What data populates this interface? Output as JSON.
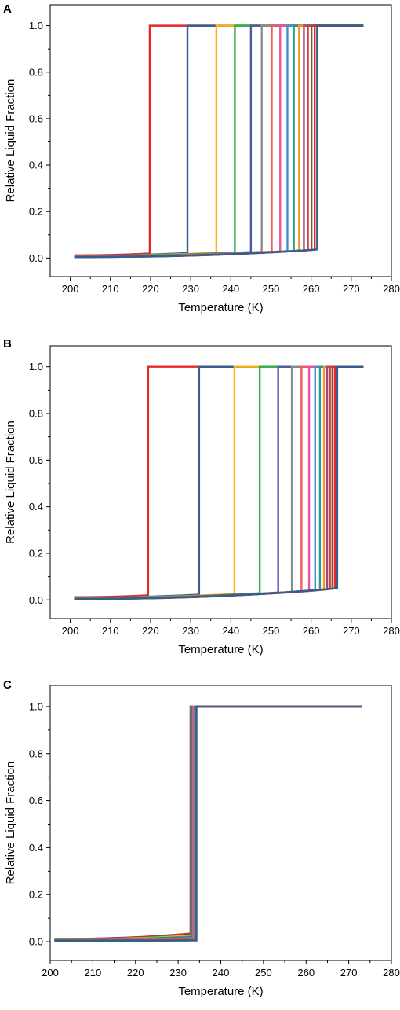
{
  "chart_data": [
    {
      "panel": "A",
      "type": "line",
      "xlabel": "Temperature (K)",
      "ylabel": "Relative Liquid Fraction",
      "xlim": [
        195,
        280
      ],
      "ylim": [
        -0.08,
        1.09
      ],
      "xticks": [
        200,
        210,
        220,
        230,
        240,
        250,
        260,
        270,
        280
      ],
      "yticks": [
        0.0,
        0.2,
        0.4,
        0.6,
        0.8,
        1.0
      ],
      "x_start": 201,
      "x_end": 273,
      "series": [
        {
          "color": "#e8262a",
          "x_jump": 219.8,
          "y_low_start": 0.012,
          "y_low_end": 0.02
        },
        {
          "color": "#315f8e",
          "x_jump": 229.2,
          "y_low_start": 0.01,
          "y_low_end": 0.022
        },
        {
          "color": "#f7b519",
          "x_jump": 236.4,
          "y_low_start": 0.009,
          "y_low_end": 0.024
        },
        {
          "color": "#2fae49",
          "x_jump": 241.0,
          "y_low_start": 0.008,
          "y_low_end": 0.025
        },
        {
          "color": "#4c5aa0",
          "x_jump": 245.0,
          "y_low_start": 0.008,
          "y_low_end": 0.026
        },
        {
          "color": "#8c8c8c",
          "x_jump": 247.7,
          "y_low_start": 0.007,
          "y_low_end": 0.027
        },
        {
          "color": "#f15a5a",
          "x_jump": 250.2,
          "y_low_start": 0.007,
          "y_low_end": 0.028
        },
        {
          "color": "#e8569f",
          "x_jump": 252.3,
          "y_low_start": 0.006,
          "y_low_end": 0.029
        },
        {
          "color": "#3f8fd0",
          "x_jump": 254.1,
          "y_low_start": 0.006,
          "y_low_end": 0.03
        },
        {
          "color": "#2a9a8a",
          "x_jump": 255.7,
          "y_low_start": 0.006,
          "y_low_end": 0.031
        },
        {
          "color": "#f59331",
          "x_jump": 257.0,
          "y_low_start": 0.005,
          "y_low_end": 0.032
        },
        {
          "color": "#a4476e",
          "x_jump": 258.2,
          "y_low_start": 0.005,
          "y_low_end": 0.033
        },
        {
          "color": "#d13f3f",
          "x_jump": 259.2,
          "y_low_start": 0.005,
          "y_low_end": 0.034
        },
        {
          "color": "#7a5c3a",
          "x_jump": 260.1,
          "y_low_start": 0.005,
          "y_low_end": 0.035
        },
        {
          "color": "#e8262a",
          "x_jump": 260.9,
          "y_low_start": 0.004,
          "y_low_end": 0.036
        },
        {
          "color": "#315f8e",
          "x_jump": 261.5,
          "y_low_start": 0.004,
          "y_low_end": 0.037
        }
      ]
    },
    {
      "panel": "B",
      "type": "line",
      "xlabel": "Temperature (K)",
      "ylabel": "Relative Liquid Fraction",
      "xlim": [
        195,
        280
      ],
      "ylim": [
        -0.08,
        1.09
      ],
      "xticks": [
        200,
        210,
        220,
        230,
        240,
        250,
        260,
        270,
        280
      ],
      "yticks": [
        0.0,
        0.2,
        0.4,
        0.6,
        0.8,
        1.0
      ],
      "x_start": 201,
      "x_end": 273,
      "series": [
        {
          "color": "#e8262a",
          "x_jump": 219.4,
          "y_low_start": 0.012,
          "y_low_end": 0.02
        },
        {
          "color": "#315f8e",
          "x_jump": 232.1,
          "y_low_start": 0.01,
          "y_low_end": 0.023
        },
        {
          "color": "#f7b519",
          "x_jump": 240.9,
          "y_low_start": 0.009,
          "y_low_end": 0.026
        },
        {
          "color": "#2fae49",
          "x_jump": 247.2,
          "y_low_start": 0.008,
          "y_low_end": 0.029
        },
        {
          "color": "#4c5aa0",
          "x_jump": 251.8,
          "y_low_start": 0.008,
          "y_low_end": 0.032
        },
        {
          "color": "#8c8c8c",
          "x_jump": 255.2,
          "y_low_start": 0.007,
          "y_low_end": 0.034
        },
        {
          "color": "#f15a5a",
          "x_jump": 257.6,
          "y_low_start": 0.007,
          "y_low_end": 0.036
        },
        {
          "color": "#e8569f",
          "x_jump": 259.5,
          "y_low_start": 0.006,
          "y_low_end": 0.038
        },
        {
          "color": "#3f8fd0",
          "x_jump": 261.0,
          "y_low_start": 0.006,
          "y_low_end": 0.04
        },
        {
          "color": "#2a9a8a",
          "x_jump": 262.2,
          "y_low_start": 0.006,
          "y_low_end": 0.042
        },
        {
          "color": "#f59331",
          "x_jump": 263.2,
          "y_low_start": 0.005,
          "y_low_end": 0.044
        },
        {
          "color": "#a4476e",
          "x_jump": 264.0,
          "y_low_start": 0.005,
          "y_low_end": 0.045
        },
        {
          "color": "#d13f3f",
          "x_jump": 264.7,
          "y_low_start": 0.005,
          "y_low_end": 0.047
        },
        {
          "color": "#7a5c3a",
          "x_jump": 265.3,
          "y_low_start": 0.005,
          "y_low_end": 0.048
        },
        {
          "color": "#e8262a",
          "x_jump": 265.9,
          "y_low_start": 0.004,
          "y_low_end": 0.049
        },
        {
          "color": "#315f8e",
          "x_jump": 266.5,
          "y_low_start": 0.004,
          "y_low_end": 0.05
        }
      ]
    },
    {
      "panel": "C",
      "type": "line",
      "xlabel": "Temperature (K)",
      "ylabel": "Relative Liquid Fraction",
      "xlim": [
        200,
        280
      ],
      "ylim": [
        -0.08,
        1.09
      ],
      "xticks": [
        200,
        210,
        220,
        230,
        240,
        250,
        260,
        270,
        280
      ],
      "yticks": [
        0.0,
        0.2,
        0.4,
        0.6,
        0.8,
        1.0
      ],
      "x_start": 201,
      "x_end": 273,
      "series": [
        {
          "color": "#e8262a",
          "x_jump": 232.9,
          "y_low_start": 0.012,
          "y_low_end": 0.035
        },
        {
          "color": "#315f8e",
          "x_jump": 233.0,
          "y_low_start": 0.011,
          "y_low_end": 0.03
        },
        {
          "color": "#f7b519",
          "x_jump": 233.1,
          "y_low_start": 0.01,
          "y_low_end": 0.026
        },
        {
          "color": "#2fae49",
          "x_jump": 233.25,
          "y_low_start": 0.009,
          "y_low_end": 0.022
        },
        {
          "color": "#4c5aa0",
          "x_jump": 233.4,
          "y_low_start": 0.008,
          "y_low_end": 0.019
        },
        {
          "color": "#8c8c8c",
          "x_jump": 233.55,
          "y_low_start": 0.007,
          "y_low_end": 0.016
        },
        {
          "color": "#f15a5a",
          "x_jump": 233.7,
          "y_low_start": 0.007,
          "y_low_end": 0.014
        },
        {
          "color": "#e8569f",
          "x_jump": 233.8,
          "y_low_start": 0.006,
          "y_low_end": 0.012
        },
        {
          "color": "#3f8fd0",
          "x_jump": 233.9,
          "y_low_start": 0.006,
          "y_low_end": 0.011
        },
        {
          "color": "#2a9a8a",
          "x_jump": 234.0,
          "y_low_start": 0.006,
          "y_low_end": 0.01
        },
        {
          "color": "#f59331",
          "x_jump": 234.05,
          "y_low_start": 0.005,
          "y_low_end": 0.009
        },
        {
          "color": "#a4476e",
          "x_jump": 234.1,
          "y_low_start": 0.005,
          "y_low_end": 0.008
        },
        {
          "color": "#d13f3f",
          "x_jump": 234.15,
          "y_low_start": 0.005,
          "y_low_end": 0.007
        },
        {
          "color": "#7a5c3a",
          "x_jump": 234.2,
          "y_low_start": 0.005,
          "y_low_end": 0.006
        },
        {
          "color": "#e8262a",
          "x_jump": 234.25,
          "y_low_start": 0.004,
          "y_low_end": 0.006
        },
        {
          "color": "#315f8e",
          "x_jump": 234.3,
          "y_low_start": 0.004,
          "y_low_end": 0.005
        }
      ]
    }
  ]
}
